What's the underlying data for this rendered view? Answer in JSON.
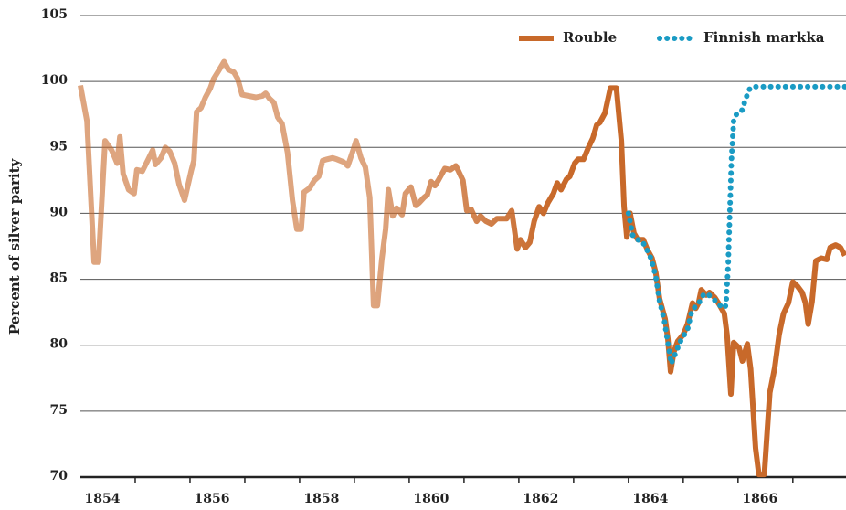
{
  "chart_data": {
    "type": "line",
    "ylabel": "Percent of silver parity",
    "xlim": [
      1854,
      1867.97
    ],
    "ylim": [
      70,
      105
    ],
    "yticks": [
      70,
      75,
      80,
      85,
      90,
      95,
      100,
      105
    ],
    "xticks": [
      {
        "value": 1854.5,
        "label": "1854"
      },
      {
        "value": 1856.5,
        "label": "1856"
      },
      {
        "value": 1858.5,
        "label": "1858"
      },
      {
        "value": 1860.5,
        "label": "1860"
      },
      {
        "value": 1862.5,
        "label": "1862"
      },
      {
        "value": 1864.5,
        "label": "1864"
      },
      {
        "value": 1866.5,
        "label": "1866"
      }
    ],
    "grid": true,
    "legend": "top-right",
    "series": [
      {
        "name": "Rouble",
        "color": "#c8692a",
        "style": "solid",
        "x": [
          1854.0,
          1854.12,
          1854.25,
          1854.33,
          1854.45,
          1854.57,
          1854.67,
          1854.72,
          1854.78,
          1854.88,
          1854.98,
          1855.03,
          1855.13,
          1855.25,
          1855.32,
          1855.37,
          1855.47,
          1855.55,
          1855.63,
          1855.72,
          1855.8,
          1855.9,
          1856.02,
          1856.07,
          1856.12,
          1856.2,
          1856.28,
          1856.37,
          1856.43,
          1856.52,
          1856.62,
          1856.7,
          1856.8,
          1856.87,
          1856.95,
          1857.07,
          1857.2,
          1857.32,
          1857.38,
          1857.45,
          1857.53,
          1857.6,
          1857.68,
          1857.78,
          1857.87,
          1857.95,
          1858.03,
          1858.08,
          1858.18,
          1858.27,
          1858.35,
          1858.42,
          1858.5,
          1858.6,
          1858.68,
          1858.8,
          1858.88,
          1858.97,
          1859.03,
          1859.12,
          1859.2,
          1859.28,
          1859.35,
          1859.42,
          1859.5,
          1859.57,
          1859.62,
          1859.7,
          1859.77,
          1859.87,
          1859.93,
          1860.03,
          1860.12,
          1860.18,
          1860.27,
          1860.33,
          1860.4,
          1860.47,
          1860.53,
          1860.65,
          1860.75,
          1860.85,
          1860.9,
          1860.98,
          1861.05,
          1861.13,
          1861.23,
          1861.3,
          1861.4,
          1861.5,
          1861.6,
          1861.7,
          1861.78,
          1861.87,
          1861.97,
          1862.03,
          1862.12,
          1862.2,
          1862.28,
          1862.37,
          1862.45,
          1862.53,
          1862.63,
          1862.7,
          1862.77,
          1862.87,
          1862.93,
          1863.02,
          1863.08,
          1863.18,
          1863.27,
          1863.35,
          1863.42,
          1863.48,
          1863.57,
          1863.67,
          1863.78,
          1863.87,
          1863.92,
          1863.97,
          1864.03,
          1864.1,
          1864.17,
          1864.27,
          1864.35,
          1864.43,
          1864.5,
          1864.57,
          1864.67,
          1864.72,
          1864.77,
          1864.83,
          1864.9,
          1865.0,
          1865.08,
          1865.17,
          1865.23,
          1865.28,
          1865.33,
          1865.42,
          1865.48,
          1865.58,
          1865.67,
          1865.75,
          1865.8,
          1865.87,
          1865.92,
          1866.02,
          1866.08,
          1866.17,
          1866.23,
          1866.32,
          1866.38,
          1866.48,
          1866.58,
          1866.67,
          1866.75,
          1866.83,
          1866.92,
          1867.0,
          1867.08,
          1867.17,
          1867.23,
          1867.28,
          1867.35,
          1867.42,
          1867.52,
          1867.62,
          1867.68,
          1867.78,
          1867.87,
          1867.95
        ],
        "values": [
          99.7,
          97,
          86.3,
          86.3,
          95.5,
          94.8,
          93.8,
          95.8,
          93,
          91.8,
          91.5,
          93.3,
          93.2,
          94.2,
          94.8,
          93.7,
          94.2,
          95,
          94.7,
          93.8,
          92.2,
          91,
          93.2,
          94,
          97.7,
          98,
          98.8,
          99.5,
          100.2,
          100.8,
          101.5,
          100.9,
          100.7,
          100.2,
          99,
          98.9,
          98.8,
          98.9,
          99.1,
          98.7,
          98.4,
          97.3,
          96.8,
          94.6,
          91,
          88.8,
          88.8,
          91.6,
          91.9,
          92.5,
          92.8,
          94,
          94.1,
          94.2,
          94.1,
          93.9,
          93.6,
          94.7,
          95.5,
          94.2,
          93.5,
          91.2,
          83,
          83,
          86.5,
          88.8,
          91.8,
          89.8,
          90.4,
          89.9,
          91.5,
          92,
          90.6,
          90.8,
          91.2,
          91.4,
          92.4,
          92.1,
          92.5,
          93.4,
          93.3,
          93.6,
          93.2,
          92.5,
          90.2,
          90.3,
          89.4,
          89.8,
          89.4,
          89.2,
          89.6,
          89.6,
          89.6,
          90.2,
          87.3,
          88,
          87.4,
          87.8,
          89.4,
          90.5,
          90,
          90.8,
          91.5,
          92.3,
          91.8,
          92.6,
          92.8,
          93.8,
          94.1,
          94.1,
          95,
          95.7,
          96.7,
          96.9,
          97.6,
          99.5,
          99.5,
          95.5,
          90.5,
          88.2,
          90,
          88.5,
          88,
          88,
          87.2,
          86.6,
          85.5,
          83.5,
          82,
          80.5,
          78,
          79.5,
          80.3,
          80.8,
          81.6,
          83.2,
          82.8,
          83.2,
          84.2,
          83.8,
          84,
          83.6,
          83,
          82.4,
          80.8,
          76.3,
          80.2,
          79.8,
          78.8,
          80.1,
          78.2,
          72.2,
          70.2,
          70.2,
          76.4,
          78.3,
          80.8,
          82.4,
          83.2,
          84.8,
          84.5,
          84,
          83.2,
          81.6,
          83.3,
          86.4,
          86.6,
          86.5,
          87.4,
          87.6,
          87.4,
          86.8
        ]
      },
      {
        "name": "Finnish markka",
        "color": "#1a9bc4",
        "style": "dotted",
        "x": [
          1864.0,
          1864.08,
          1864.17,
          1864.25,
          1864.33,
          1864.42,
          1864.5,
          1864.57,
          1864.65,
          1864.72,
          1864.78,
          1864.87,
          1864.95,
          1865.02,
          1865.08,
          1865.15,
          1865.23,
          1865.3,
          1865.38,
          1865.47,
          1865.55,
          1865.63,
          1865.72,
          1865.78,
          1865.82,
          1865.85,
          1865.88,
          1865.92,
          1865.98,
          1866.07,
          1866.15,
          1866.22,
          1866.3,
          1866.45,
          1866.7,
          1867.03,
          1867.37,
          1867.7,
          1867.97
        ],
        "values": [
          90,
          88.3,
          88,
          87.9,
          87.3,
          86.5,
          85.2,
          83.3,
          82,
          80.2,
          78.6,
          79.5,
          80.3,
          80.8,
          81.2,
          82.5,
          83,
          83.3,
          83.9,
          83.8,
          83.5,
          83.2,
          82.8,
          83,
          86,
          90,
          94,
          97,
          97.6,
          97.8,
          98.8,
          99.5,
          99.6,
          99.6,
          99.6,
          99.6,
          99.6,
          99.6,
          99.6
        ]
      }
    ]
  }
}
